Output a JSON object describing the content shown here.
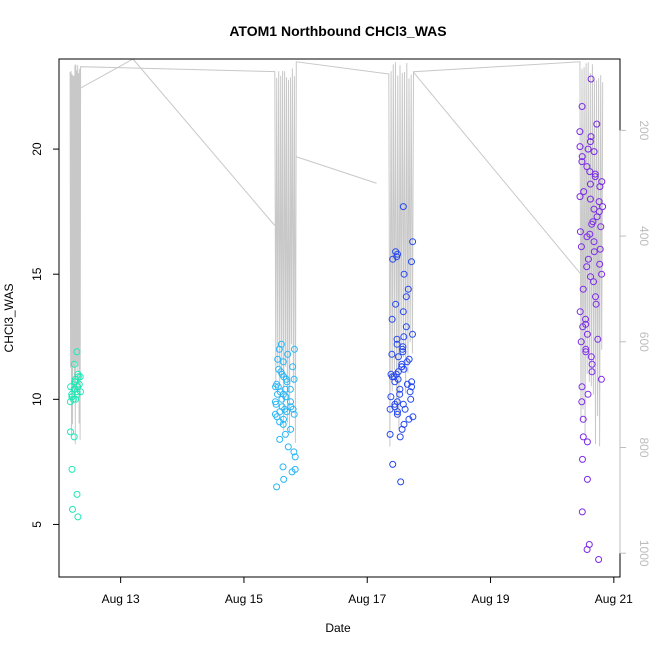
{
  "chart_data": {
    "type": "scatter",
    "title": "ATOM1 Northbound CHCl3_WAS",
    "xlabel": "Date",
    "ylabel": "CHCl3_WAS",
    "x_ticks": [
      "Aug 13",
      "Aug 15",
      "Aug 17",
      "Aug 19",
      "Aug 21"
    ],
    "y_ticks": [
      5,
      10,
      15,
      20
    ],
    "right_axis_ticks": [
      200,
      400,
      600,
      800,
      1000
    ],
    "xlim_days": [
      12.0,
      21.1
    ],
    "ylim": [
      2.9,
      23.6
    ],
    "right_ylim": [
      1045,
      65
    ],
    "grid": false,
    "colors": {
      "cluster_aug12": "#1de9b6",
      "cluster_aug15": "#29b6f6",
      "cluster_aug17": "#2447f0",
      "cluster_aug20": "#7c2ae8",
      "flight_track": "#c8c8c8"
    },
    "clusters": [
      {
        "date_label": "Aug 12",
        "color_key": "cluster_aug12",
        "x_range": [
          12.18,
          12.35
        ],
        "values": [
          11.9,
          11.4,
          11.0,
          10.9,
          10.8,
          10.7,
          10.6,
          10.5,
          10.5,
          10.4,
          10.4,
          10.3,
          10.3,
          10.2,
          10.2,
          10.1,
          10.1,
          10.0,
          10.0,
          9.9,
          10.9,
          10.7,
          8.7,
          8.5,
          7.2,
          6.2,
          5.6,
          5.3
        ]
      },
      {
        "date_label": "Aug 15",
        "color_key": "cluster_aug15",
        "x_range": [
          15.5,
          15.85
        ],
        "values": [
          12.2,
          12.0,
          11.8,
          11.5,
          11.3,
          11.2,
          11.0,
          10.9,
          10.8,
          10.7,
          10.6,
          10.5,
          10.4,
          10.3,
          10.2,
          10.1,
          10.0,
          9.9,
          9.8,
          9.7,
          9.6,
          9.5,
          9.4,
          9.3,
          9.2,
          9.1,
          9.0,
          10.5,
          10.2,
          9.9,
          9.6,
          9.4,
          10.8,
          11.1,
          9.7,
          9.5,
          8.8,
          8.6,
          8.4,
          8.1,
          7.9,
          7.7,
          7.3,
          7.2,
          7.1,
          6.8,
          6.5,
          12.0,
          11.6,
          10.4
        ]
      },
      {
        "date_label": "Aug 17",
        "color_key": "cluster_aug17",
        "x_range": [
          17.35,
          17.75
        ],
        "values": [
          17.7,
          16.3,
          15.9,
          15.8,
          15.7,
          15.6,
          15.5,
          15.0,
          14.4,
          14.1,
          13.8,
          13.5,
          13.2,
          12.9,
          12.6,
          12.5,
          12.4,
          12.2,
          12.0,
          11.9,
          11.8,
          11.7,
          11.6,
          11.5,
          11.4,
          11.3,
          11.2,
          11.1,
          11.0,
          10.9,
          10.8,
          10.7,
          10.6,
          10.5,
          10.4,
          10.3,
          10.2,
          10.1,
          10.0,
          9.9,
          9.8,
          9.7,
          9.6,
          9.5,
          9.4,
          9.3,
          9.2,
          9.0,
          8.8,
          8.6,
          8.5,
          7.4,
          6.7,
          11.0,
          10.7,
          11.3,
          12.1,
          10.9,
          9.8,
          9.6
        ]
      },
      {
        "date_label": "Aug 20",
        "color_key": "cluster_aug20",
        "x_range": [
          20.45,
          20.82
        ],
        "values": [
          22.8,
          21.7,
          20.7,
          20.5,
          20.3,
          20.1,
          19.9,
          19.7,
          19.5,
          19.3,
          19.1,
          18.9,
          18.7,
          18.5,
          18.3,
          18.1,
          17.9,
          17.7,
          17.5,
          17.3,
          17.1,
          16.9,
          16.7,
          16.5,
          16.3,
          16.1,
          15.9,
          15.6,
          15.3,
          15.0,
          14.7,
          14.4,
          14.1,
          13.8,
          13.5,
          13.2,
          12.9,
          12.6,
          12.3,
          12.0,
          11.7,
          11.4,
          11.1,
          10.8,
          10.5,
          10.2,
          9.9,
          9.2,
          8.5,
          8.3,
          7.6,
          6.8,
          5.5,
          4.2,
          4.0,
          3.6,
          18.0,
          17.0,
          16.0,
          19.0,
          20.0,
          21.0,
          14.9,
          13.0,
          12.4,
          11.9,
          17.6,
          16.6,
          18.6,
          15.4
        ]
      }
    ]
  }
}
